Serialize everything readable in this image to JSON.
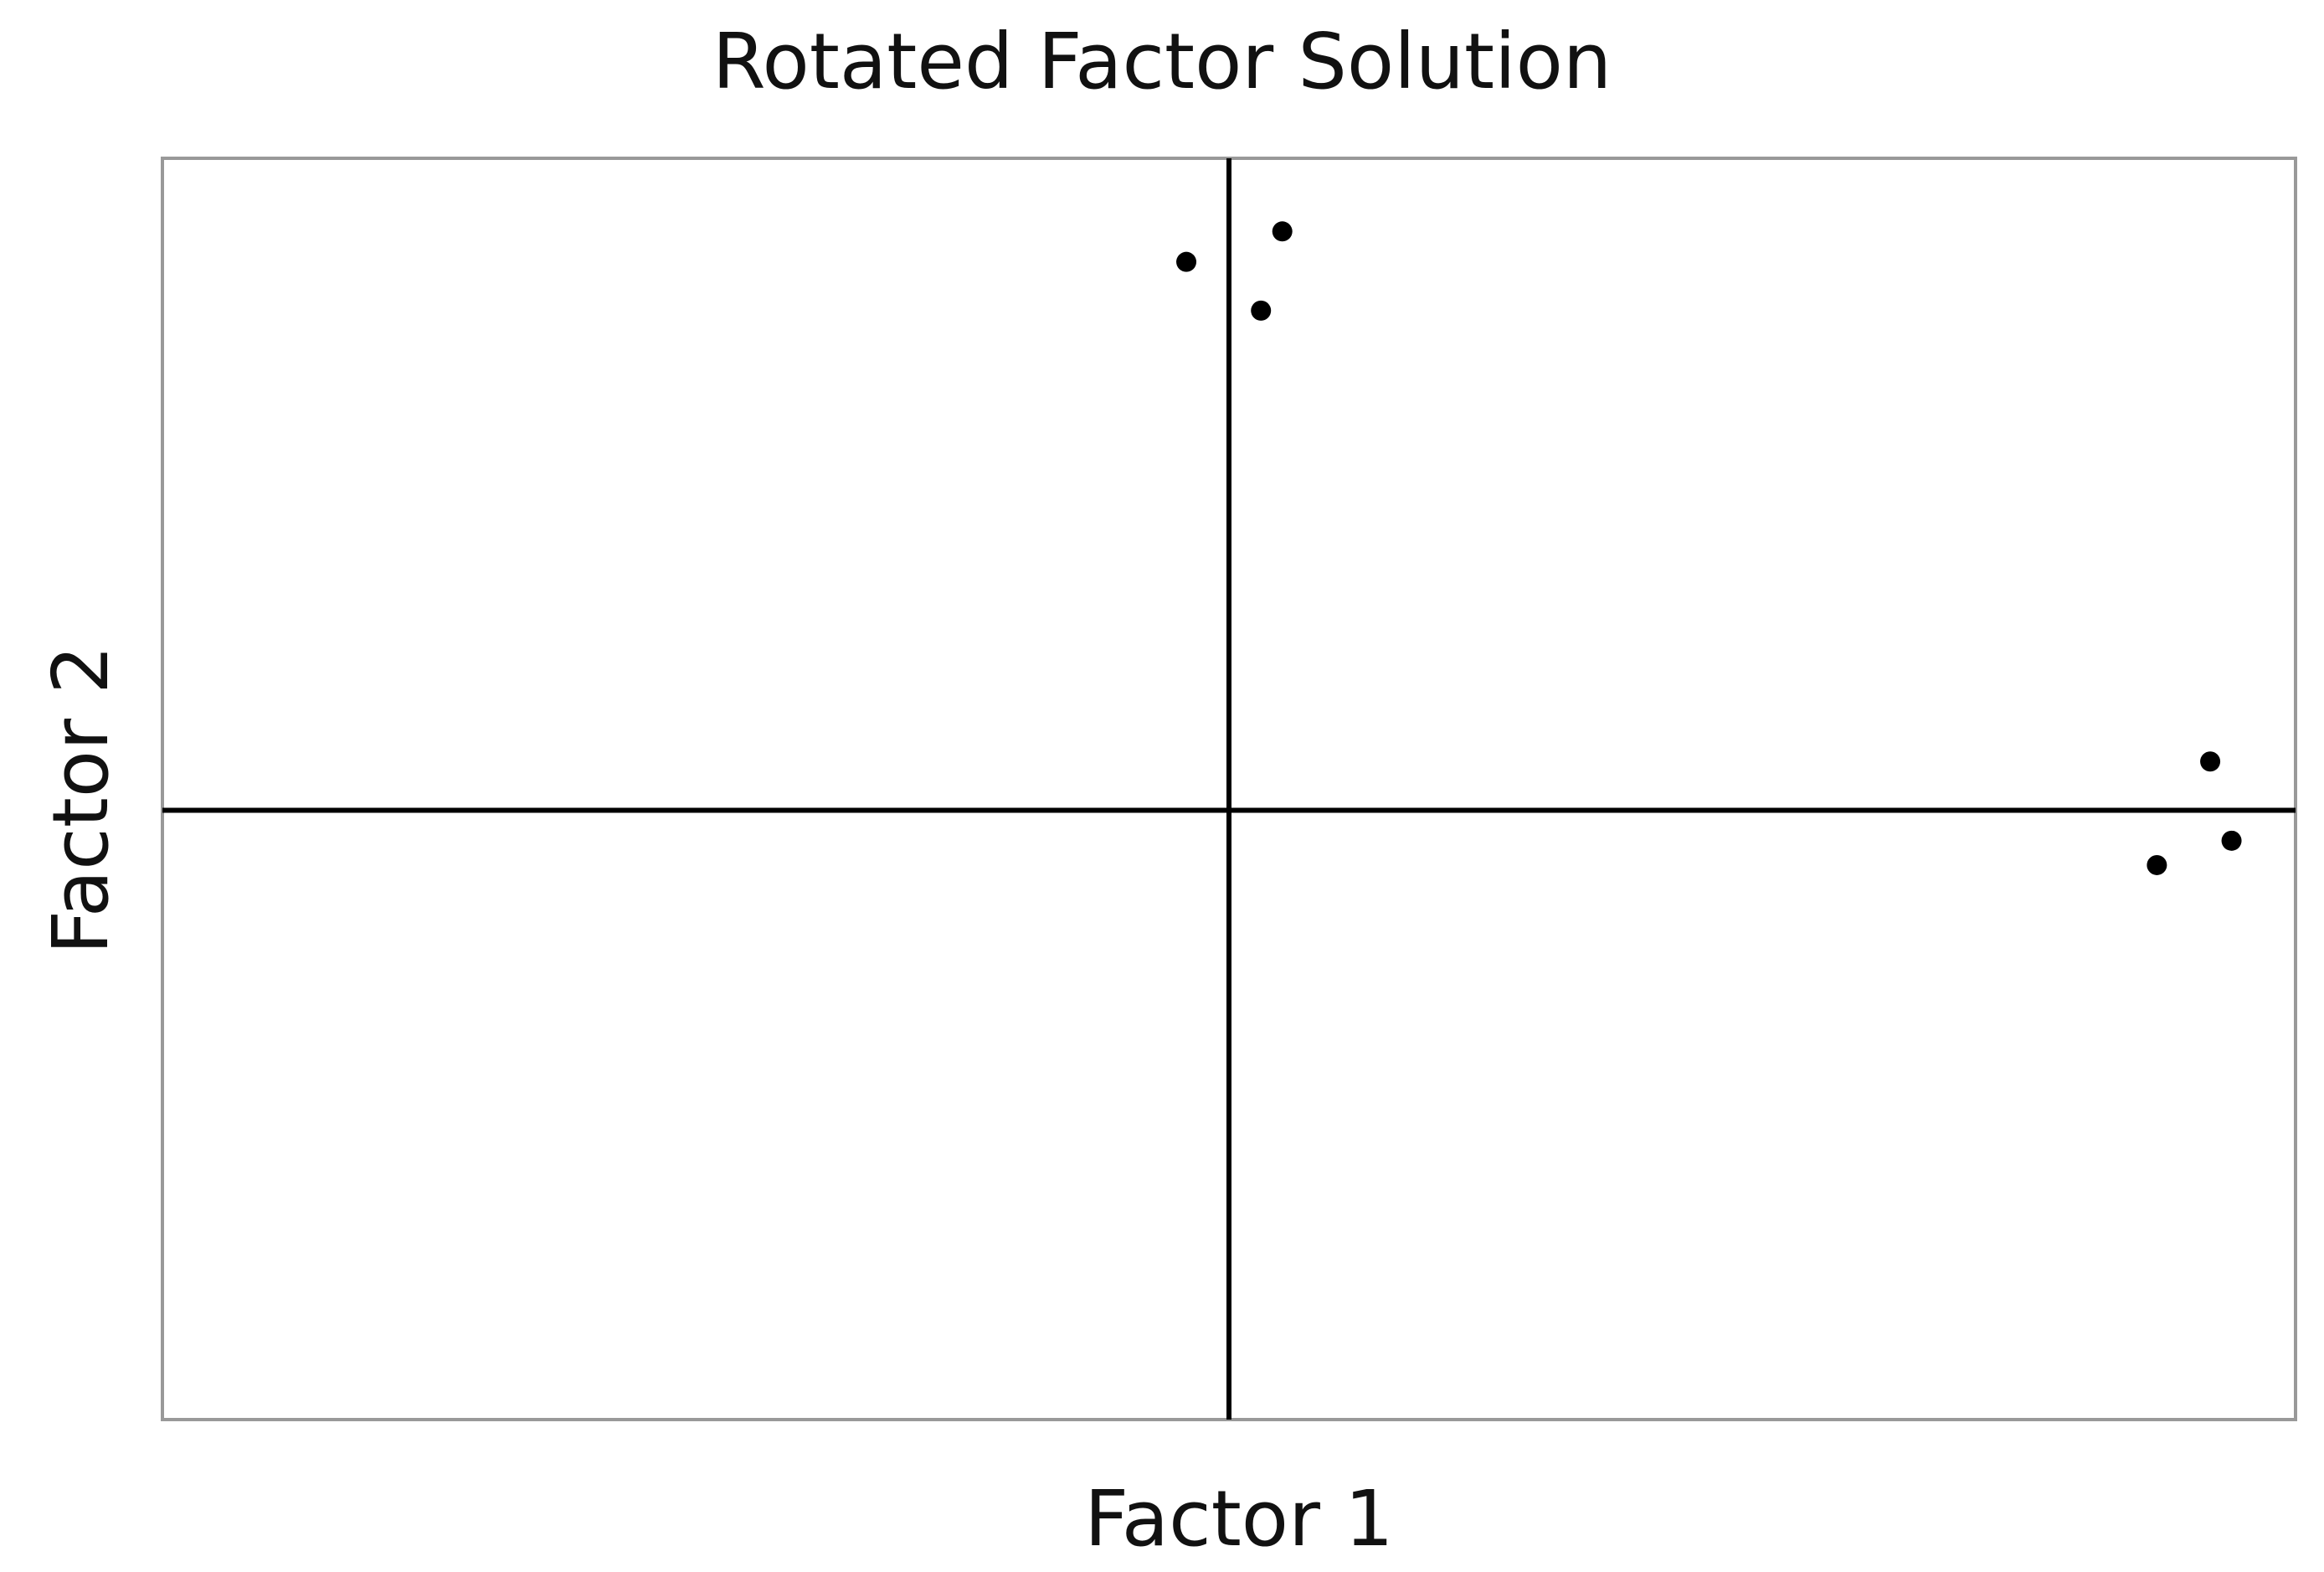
{
  "chart_data": {
    "type": "scatter",
    "title": "Rotated Factor Solution",
    "xlabel": "Factor 1",
    "ylabel": "Factor 2",
    "xlim": [
      -1,
      1
    ],
    "ylim": [
      -1,
      1.07
    ],
    "grid": false,
    "legend": "none",
    "zero_lines": true,
    "point_color": "#000000",
    "frame_color": "#999999",
    "points": [
      {
        "x": -0.04,
        "y": 0.9
      },
      {
        "x": 0.05,
        "y": 0.95
      },
      {
        "x": 0.03,
        "y": 0.82
      },
      {
        "x": 0.92,
        "y": 0.08
      },
      {
        "x": 0.94,
        "y": -0.05
      },
      {
        "x": 0.87,
        "y": -0.09
      }
    ]
  }
}
